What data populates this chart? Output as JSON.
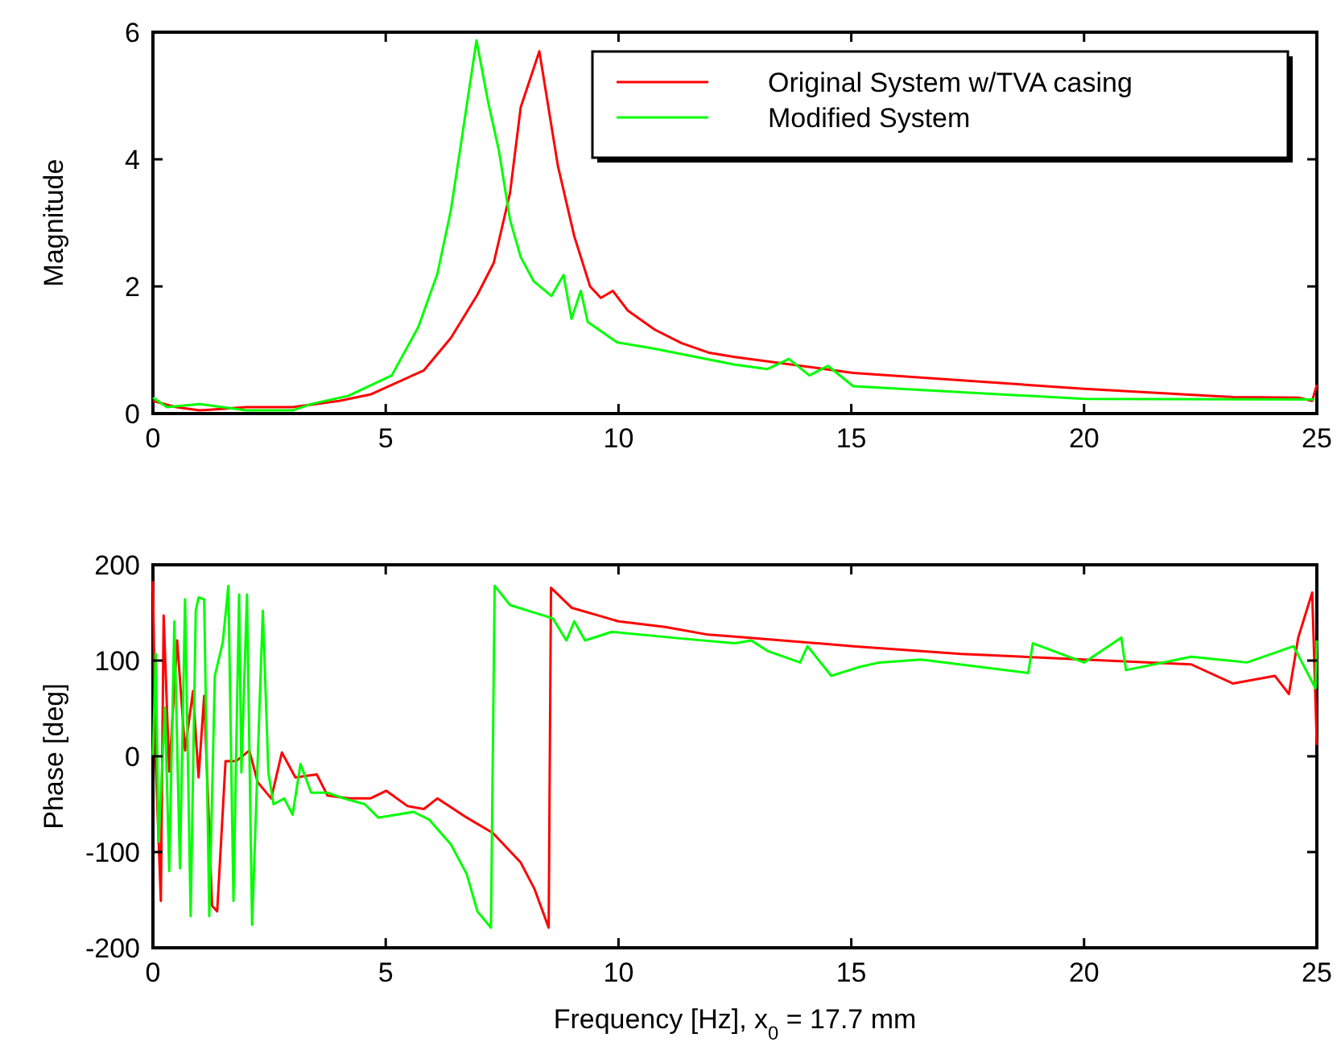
{
  "chart_data": [
    {
      "type": "line",
      "ylabel": "Magnitude",
      "xlim": [
        0,
        25
      ],
      "xticks": [
        0,
        5,
        10,
        15,
        20,
        25
      ],
      "ylim": [
        0,
        6
      ],
      "yticks": [
        0,
        2,
        4,
        6
      ],
      "grid": false,
      "legend": "top right",
      "marker": "none",
      "line_style": "solid",
      "series": [
        {
          "name": "Original System w/TVA casing",
          "color": "#ff0000",
          "x": [
            0,
            0.5,
            1,
            2,
            3,
            4,
            4.67,
            5.82,
            6.4,
            6.97,
            7.32,
            7.67,
            7.9,
            8.3,
            8.7,
            9.05,
            9.39,
            9.62,
            9.88,
            10.2,
            10.78,
            11.35,
            11.93,
            12.5,
            15.04,
            20,
            23.2,
            24.6,
            24.9,
            25
          ],
          "values": [
            0.2,
            0.1,
            0.05,
            0.1,
            0.1,
            0.2,
            0.3,
            0.68,
            1.19,
            1.87,
            2.37,
            3.47,
            4.82,
            5.7,
            3.89,
            2.79,
            2,
            1.82,
            1.93,
            1.62,
            1.32,
            1.11,
            0.96,
            0.89,
            0.64,
            0.39,
            0.26,
            0.25,
            0.2,
            0.45
          ]
        },
        {
          "name": "Modified System",
          "color": "#00ff00",
          "x": [
            0,
            0.3,
            1,
            2,
            3,
            3.4,
            4.2,
            5.13,
            5.7,
            6.11,
            6.4,
            6.63,
            6.95,
            7.2,
            7.43,
            7.67,
            7.9,
            8.18,
            8.56,
            8.82,
            8.99,
            9.19,
            9.34,
            9.97,
            10.78,
            12.5,
            13.2,
            13.66,
            14.1,
            14.5,
            15.04,
            20,
            24.95
          ],
          "values": [
            0.25,
            0.1,
            0.15,
            0.05,
            0.05,
            0.15,
            0.28,
            0.6,
            1.36,
            2.2,
            3.2,
            4.31,
            5.87,
            4.9,
            4.14,
            3.05,
            2.46,
            2.08,
            1.85,
            2.18,
            1.49,
            1.93,
            1.44,
            1.12,
            1.02,
            0.77,
            0.7,
            0.86,
            0.6,
            0.75,
            0.43,
            0.23,
            0.22
          ]
        }
      ]
    },
    {
      "type": "line",
      "xlabel": "Frequency [Hz], x$_{0}$ = 17.7 mm",
      "ylabel": "Phase [deg]",
      "xlim": [
        0,
        25
      ],
      "xticks": [
        0,
        5,
        10,
        15,
        20,
        25
      ],
      "ylim": [
        -200,
        200
      ],
      "yticks": [
        -200,
        -100,
        0,
        100,
        200
      ],
      "grid": false,
      "legend": false,
      "marker": "none",
      "line_style": "solid",
      "series": [
        {
          "color": "#ff0000",
          "x": [
            0,
            0.06,
            0.17,
            0.23,
            0.35,
            0.52,
            0.69,
            0.86,
            0.98,
            1.1,
            1.27,
            1.38,
            1.56,
            1.79,
            2.07,
            2.25,
            2.54,
            2.77,
            3.06,
            3.52,
            3.75,
            4.2,
            4.67,
            5.01,
            5.47,
            5.82,
            6.11,
            6.74,
            7.3,
            7.9,
            8.2,
            8.5,
            8.55,
            9,
            9.5,
            10,
            11,
            11.93,
            12.5,
            15.04,
            17.35,
            20,
            22.3,
            23.2,
            24.1,
            24.4,
            24.6,
            24.9,
            25
          ],
          "values": [
            183,
            -5,
            -151,
            147,
            -16,
            121,
            6,
            68,
            -22,
            63,
            -156,
            -162,
            -5,
            -5,
            6,
            -27,
            -44,
            4,
            -22,
            -19,
            -41,
            -44,
            -44,
            -36,
            -52,
            -55,
            -44,
            -64,
            -80,
            -111,
            -139,
            -179,
            176,
            155,
            148,
            141,
            135,
            127,
            125,
            115,
            107,
            101,
            96,
            76,
            84,
            65,
            124,
            171,
            12
          ]
        },
        {
          "color": "#00ff00",
          "x": [
            0,
            0.06,
            0.12,
            0.26,
            0.35,
            0.46,
            0.58,
            0.69,
            0.81,
            0.92,
            0.98,
            1.1,
            1.21,
            1.33,
            1.5,
            1.62,
            1.73,
            1.85,
            1.9,
            2.02,
            2.13,
            2.36,
            2.48,
            2.59,
            2.82,
            3,
            3.17,
            3.4,
            3.75,
            4.1,
            4.55,
            4.84,
            5.24,
            5.59,
            5.93,
            6.4,
            6.74,
            6.97,
            7.26,
            7.34,
            7.67,
            8.13,
            8.59,
            8.88,
            9.05,
            9.28,
            9.86,
            11.35,
            12.5,
            12.85,
            13.2,
            13.9,
            14.06,
            14.57,
            15.15,
            15.6,
            16.5,
            18.8,
            18.9,
            20,
            20.8,
            20.9,
            22.3,
            23.5,
            24.5,
            24.97,
            25
          ],
          "values": [
            1,
            107,
            -89,
            51,
            -120,
            141,
            -117,
            164,
            -167,
            152,
            166,
            164,
            -167,
            84,
            119,
            178,
            -151,
            169,
            -17,
            169,
            -176,
            152,
            -17,
            -50,
            -44,
            -61,
            -8,
            -38,
            -38,
            -44,
            -50,
            -64,
            -61,
            -58,
            -66,
            -92,
            -123,
            -162,
            -179,
            178,
            158,
            151,
            144,
            121,
            141,
            121,
            130,
            123,
            118,
            121,
            110,
            98,
            115,
            84,
            93,
            98,
            101,
            87,
            118,
            98,
            124,
            90,
            104,
            98,
            115,
            71,
            121
          ]
        }
      ]
    }
  ]
}
